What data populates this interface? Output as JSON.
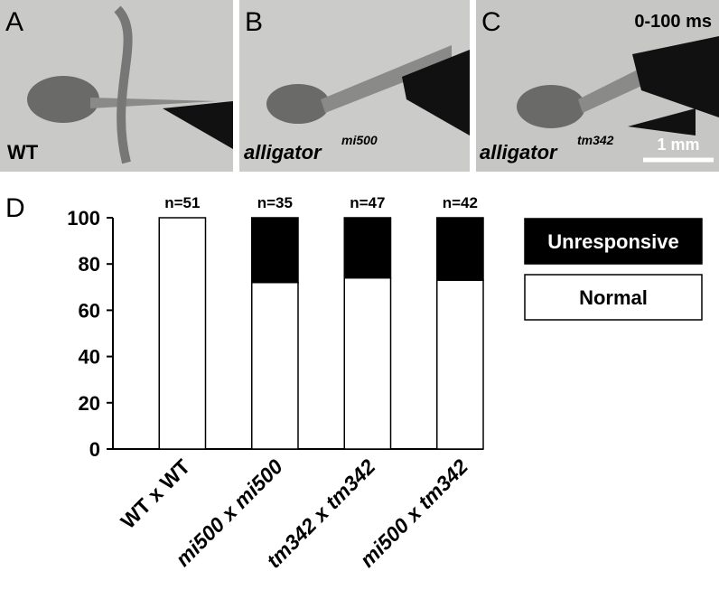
{
  "panels": [
    {
      "letter": "A",
      "label": "WT"
    },
    {
      "letter": "B",
      "label": "alligator",
      "superscript": "mi500"
    },
    {
      "letter": "C",
      "label": "alligator",
      "superscript": "tm342",
      "time": "0-100 ms",
      "scale": "1 mm"
    }
  ],
  "chart_data": {
    "type": "stacked_bar",
    "panel_letter": "D",
    "categories": [
      "WT x WT",
      "mi500 x mi500",
      "tm342 x tm342",
      "mi500 x tm342"
    ],
    "annotations": [
      "n=51",
      "n=35",
      "n=47",
      "n=42"
    ],
    "series": [
      {
        "name": "Normal",
        "color": "#ffffff",
        "values": [
          100,
          72,
          74,
          73
        ]
      },
      {
        "name": "Unresponsive",
        "color": "#000000",
        "values": [
          0,
          28,
          26,
          27
        ]
      }
    ],
    "ylim": [
      0,
      100
    ],
    "yticks": [
      0,
      20,
      40,
      60,
      80,
      100
    ],
    "legend": "right"
  }
}
